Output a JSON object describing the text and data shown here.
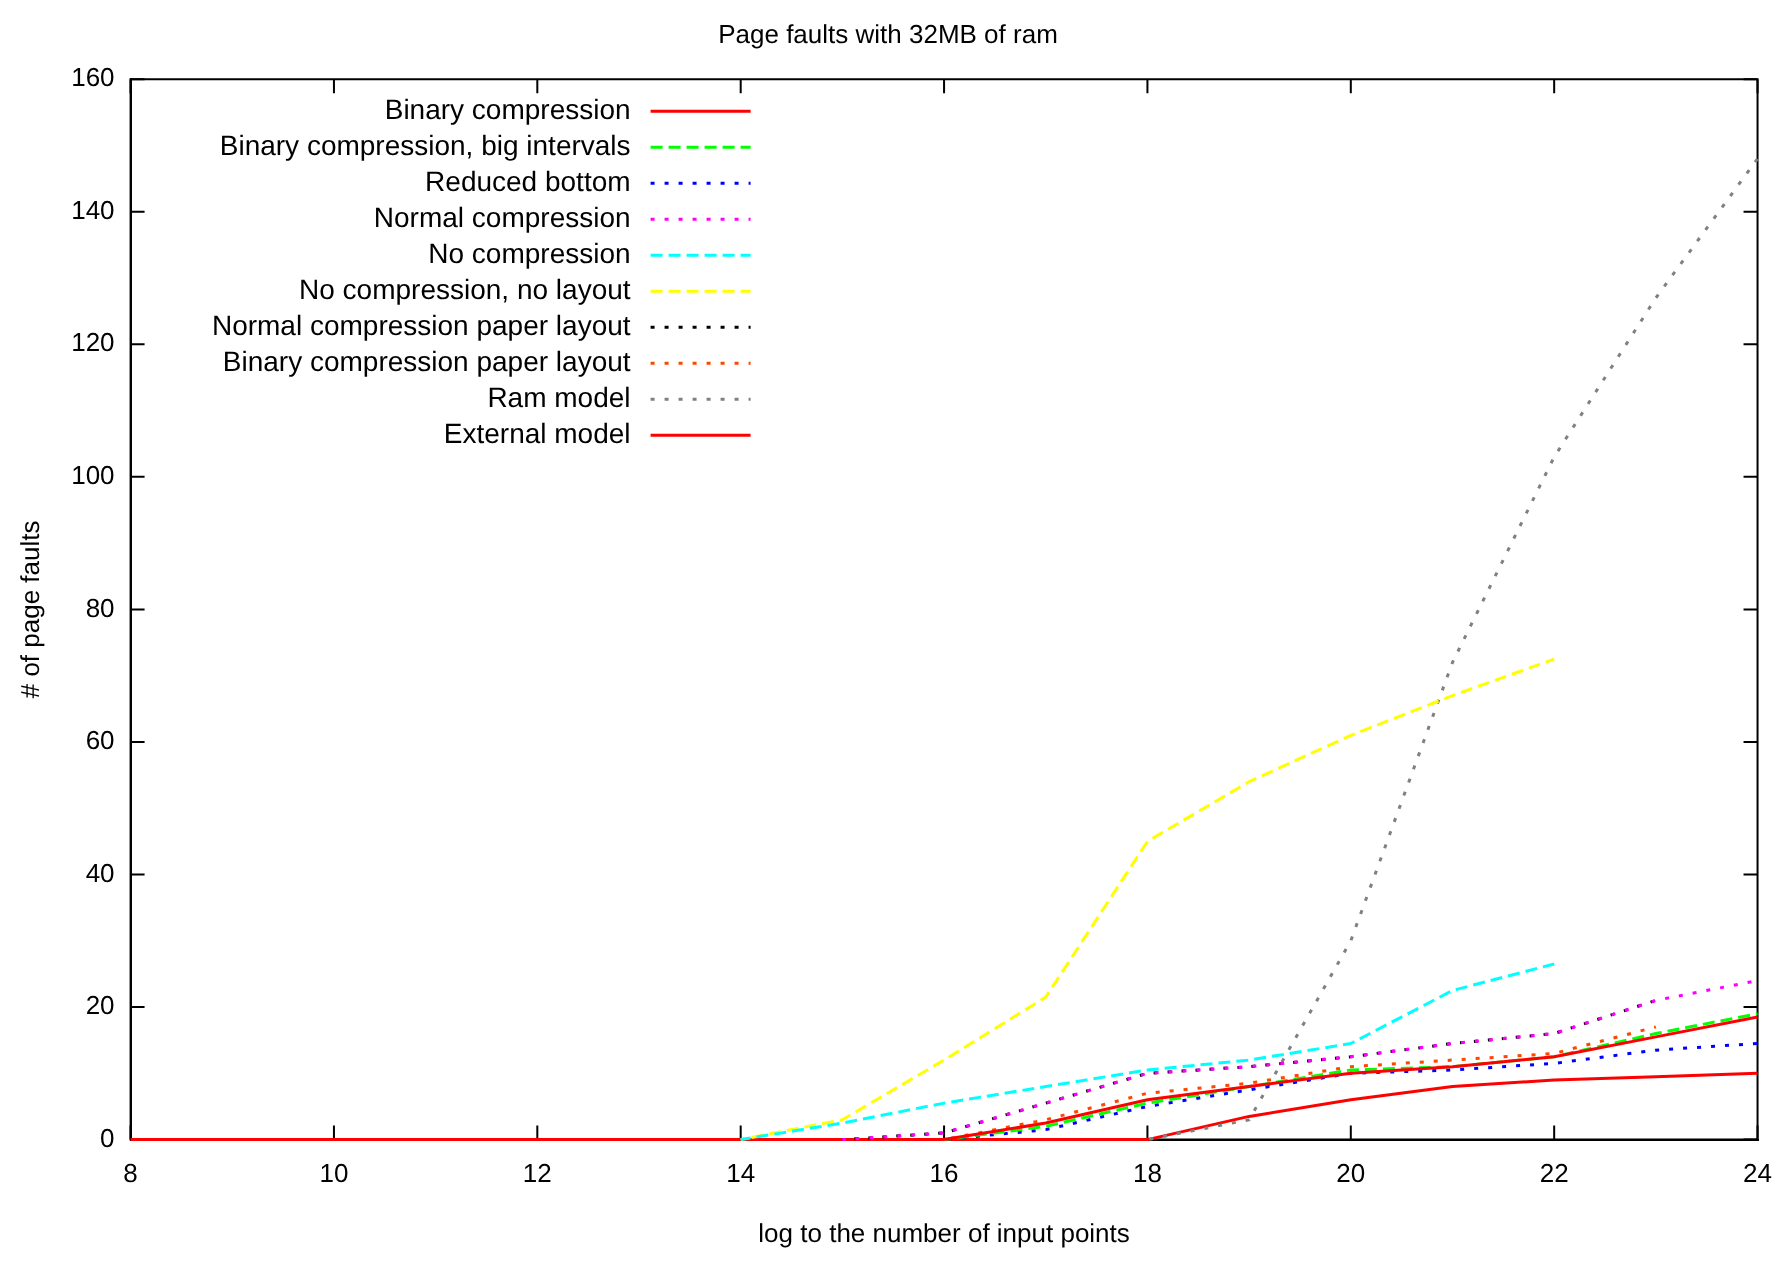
{
  "chart_data": {
    "type": "line",
    "title": "Page faults with 32MB of ram",
    "xlabel": "log to the number of input points",
    "ylabel": "# of page faults",
    "x": [
      8,
      9,
      10,
      11,
      12,
      13,
      14,
      15,
      16,
      17,
      18,
      19,
      20,
      21,
      22,
      23,
      24
    ],
    "xlim": [
      8,
      24
    ],
    "xticks": [
      8,
      10,
      12,
      14,
      16,
      18,
      20,
      22,
      24
    ],
    "ylim": [
      0,
      160
    ],
    "yticks": [
      0,
      20,
      40,
      60,
      80,
      100,
      120,
      140,
      160
    ],
    "grid": false,
    "legend": "top left",
    "marker": "none",
    "series": [
      {
        "name": "Binary compression",
        "color": "#ff0000",
        "line_style": "solid",
        "values": [
          null,
          null,
          null,
          null,
          null,
          null,
          null,
          null,
          0,
          2.5,
          6,
          8,
          10,
          11,
          12.5,
          15.5,
          18.5
        ]
      },
      {
        "name": "Binary compression, big intervals",
        "color": "#00ff00",
        "line_style": "dashed",
        "values": [
          null,
          null,
          null,
          null,
          null,
          null,
          null,
          null,
          0,
          2,
          5.5,
          8,
          10.5,
          11,
          12.5,
          16,
          19
        ]
      },
      {
        "name": "Reduced bottom",
        "color": "#0000ff",
        "line_style": "dotted",
        "values": [
          null,
          null,
          null,
          null,
          null,
          null,
          null,
          null,
          0,
          1.5,
          5,
          7.5,
          10,
          10.5,
          11.5,
          13.5,
          14.5
        ]
      },
      {
        "name": "Normal compression",
        "color": "#ff00ff",
        "line_style": "dotted",
        "values": [
          null,
          null,
          null,
          null,
          null,
          null,
          null,
          0,
          1,
          5.5,
          10,
          11,
          12.5,
          14.5,
          16,
          21,
          24
        ]
      },
      {
        "name": "No compression",
        "color": "#00ffff",
        "line_style": "dashed",
        "values": [
          null,
          null,
          null,
          null,
          null,
          null,
          0,
          2.5,
          5.5,
          8,
          10.5,
          12,
          14.5,
          22.5,
          26.5,
          null,
          null
        ]
      },
      {
        "name": "No compression, no layout",
        "color": "#ffff00",
        "line_style": "dashed",
        "values": [
          null,
          null,
          null,
          null,
          null,
          null,
          0,
          3,
          12,
          21.5,
          45,
          54,
          61,
          67,
          72.5,
          null,
          null
        ]
      },
      {
        "name": "Normal compression paper layout",
        "color": "#000000",
        "line_style": "dotted",
        "values": [
          null,
          null,
          null,
          null,
          null,
          null,
          null,
          0,
          1,
          5.5,
          10,
          11,
          12.5,
          14.5,
          16,
          21,
          null
        ]
      },
      {
        "name": "Binary compression paper layout",
        "color": "#ff4500",
        "line_style": "dotted",
        "values": [
          null,
          null,
          null,
          null,
          null,
          null,
          null,
          null,
          0,
          3,
          7,
          8.5,
          11,
          12,
          13,
          17,
          null
        ]
      },
      {
        "name": "Ram model",
        "color": "#808080",
        "line_style": "dotted",
        "values": [
          null,
          null,
          null,
          null,
          null,
          null,
          null,
          null,
          null,
          null,
          0,
          3,
          30,
          72,
          103,
          127,
          148
        ]
      },
      {
        "name": "External model",
        "color": "#ff0000",
        "line_style": "solid",
        "values": [
          0,
          0,
          0,
          0,
          0,
          0,
          0,
          0,
          0,
          0,
          0,
          3.5,
          6,
          8,
          9,
          9.5,
          10
        ]
      }
    ]
  }
}
